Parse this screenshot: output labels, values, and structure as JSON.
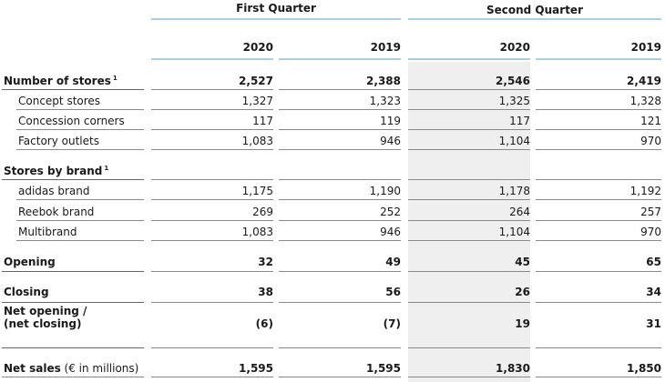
{
  "header": {
    "group1": "First Quarter",
    "group2": "Second Quarter",
    "years": [
      "2020",
      "2019",
      "2020",
      "2019"
    ]
  },
  "rows": [
    {
      "label": "Number of stores",
      "sup": "1",
      "values": [
        "2,527",
        "2,388",
        "2,546",
        "2,419"
      ],
      "bold": true
    },
    {
      "label": "Concept stores",
      "values": [
        "1,327",
        "1,323",
        "1,325",
        "1,328"
      ]
    },
    {
      "label": "Concession corners",
      "values": [
        "117",
        "119",
        "117",
        "121"
      ]
    },
    {
      "label": "Factory outlets",
      "values": [
        "1,083",
        "946",
        "1,104",
        "970"
      ]
    },
    {
      "label": "Stores by brand",
      "sup": "1",
      "values": [
        "",
        "",
        "",
        ""
      ],
      "bold": true
    },
    {
      "label": "adidas brand",
      "values": [
        "1,175",
        "1,190",
        "1,178",
        "1,192"
      ]
    },
    {
      "label": "Reebok brand",
      "values": [
        "269",
        "252",
        "264",
        "257"
      ]
    },
    {
      "label": "Multibrand",
      "values": [
        "1,083",
        "946",
        "1,104",
        "970"
      ]
    },
    {
      "label": "Opening",
      "values": [
        "32",
        "49",
        "45",
        "65"
      ],
      "bold": true
    },
    {
      "label": "Closing",
      "values": [
        "38",
        "56",
        "26",
        "34"
      ],
      "bold": true
    },
    {
      "label": "Net opening /",
      "label2": "(net closing)",
      "values": [
        "(6)",
        "(7)",
        "19",
        "31"
      ],
      "bold": true
    },
    {
      "label": "Net sales",
      "label_suffix": "(€ in millions)",
      "values": [
        "1,595",
        "1,595",
        "1,830",
        "1,850"
      ],
      "bold": true
    }
  ]
}
